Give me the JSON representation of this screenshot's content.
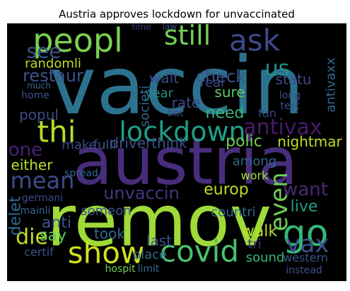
{
  "chart_data": {
    "type": "wordcloud",
    "title": "Austria approves lockdown for unvaccinated",
    "background": "#000000",
    "words": [
      {
        "text": "vaccin",
        "weight": 112,
        "color": "#2c728e"
      },
      {
        "text": "austria",
        "weight": 92,
        "color": "#472d7b"
      },
      {
        "text": "remov",
        "weight": 100,
        "color": "#a0da39"
      },
      {
        "text": "peopl",
        "weight": 46,
        "color": "#7ad151"
      },
      {
        "text": "still",
        "weight": 38,
        "color": "#73d056"
      },
      {
        "text": "ask",
        "weight": 42,
        "color": "#3e4989"
      },
      {
        "text": "see",
        "weight": 28,
        "color": "#3b528b"
      },
      {
        "text": "us",
        "weight": 30,
        "color": "#21918c"
      },
      {
        "text": "thi",
        "weight": 42,
        "color": "#b5de2b"
      },
      {
        "text": "lockdown",
        "weight": 38,
        "color": "#1f9e89"
      },
      {
        "text": "antivax",
        "weight": 30,
        "color": "#481a6c"
      },
      {
        "text": "go",
        "weight": 52,
        "color": "#35b779"
      },
      {
        "text": "show",
        "weight": 42,
        "color": "#d2e21b"
      },
      {
        "text": "covid",
        "weight": 42,
        "color": "#4ac16d"
      },
      {
        "text": "mean",
        "weight": 32,
        "color": "#3e4a89"
      },
      {
        "text": "even",
        "weight": 34,
        "color": "#6ece58"
      },
      {
        "text": "vax",
        "weight": 34,
        "color": "#3b528b"
      },
      {
        "text": "want",
        "weight": 26,
        "color": "#482878"
      },
      {
        "text": "die",
        "weight": 30,
        "color": "#c2df23"
      },
      {
        "text": "unvaccin",
        "weight": 24,
        "color": "#46337e"
      },
      {
        "text": "europ",
        "weight": 22,
        "color": "#b8de29"
      },
      {
        "text": "walk",
        "weight": 22,
        "color": "#b5de2b"
      },
      {
        "text": "one",
        "weight": 26,
        "color": "#482173"
      },
      {
        "text": "restaur",
        "weight": 24,
        "color": "#3b528b"
      },
      {
        "text": "randomli",
        "weight": 18,
        "color": "#b8de29"
      },
      {
        "text": "check",
        "weight": 24,
        "color": "#3b528b"
      },
      {
        "text": "wait",
        "weight": 20,
        "color": "#3e4a89"
      },
      {
        "text": "statu",
        "weight": 20,
        "color": "#3e4a89"
      },
      {
        "text": "sure",
        "weight": 20,
        "color": "#5ec962"
      },
      {
        "text": "antivaxx",
        "weight": 18,
        "color": "#31688e"
      },
      {
        "text": "year",
        "weight": 18,
        "color": "#21918c"
      },
      {
        "text": "rate",
        "weight": 20,
        "color": "#3e4a89"
      },
      {
        "text": "real",
        "weight": 18,
        "color": "#3e4a89"
      },
      {
        "text": "need",
        "weight": 22,
        "color": "#35b779"
      },
      {
        "text": "polic",
        "weight": 22,
        "color": "#6ece58"
      },
      {
        "text": "nightmar",
        "weight": 20,
        "color": "#c2df23"
      },
      {
        "text": "societi",
        "weight": 18,
        "color": "#31688e"
      },
      {
        "text": "fun",
        "weight": 16,
        "color": "#3e4a89"
      },
      {
        "text": "popul",
        "weight": 20,
        "color": "#3e4a89"
      },
      {
        "text": "fulli",
        "weight": 18,
        "color": "#3b528b"
      },
      {
        "text": "make",
        "weight": 18,
        "color": "#3e4a89"
      },
      {
        "text": "driverthink",
        "weight": 20,
        "color": "#3b528b"
      },
      {
        "text": "either",
        "weight": 20,
        "color": "#b8de29"
      },
      {
        "text": "among",
        "weight": 18,
        "color": "#31688e"
      },
      {
        "text": "work",
        "weight": 16,
        "color": "#a0da39"
      },
      {
        "text": "live",
        "weight": 22,
        "color": "#1f9e89"
      },
      {
        "text": "delet",
        "weight": 22,
        "color": "#31688e"
      },
      {
        "text": "anti",
        "weight": 22,
        "color": "#3b528b"
      },
      {
        "text": "say",
        "weight": 22,
        "color": "#5ec962"
      },
      {
        "text": "someon",
        "weight": 18,
        "color": "#3b528b"
      },
      {
        "text": "took",
        "weight": 20,
        "color": "#31688e"
      },
      {
        "text": "last",
        "weight": 20,
        "color": "#3b528b"
      },
      {
        "text": "countri",
        "weight": 18,
        "color": "#31688e"
      },
      {
        "text": "tri",
        "weight": 18,
        "color": "#46327e"
      },
      {
        "text": "sound",
        "weight": 18,
        "color": "#35b779"
      },
      {
        "text": "western",
        "weight": 16,
        "color": "#3b528b"
      },
      {
        "text": "certif",
        "weight": 16,
        "color": "#3b528b"
      },
      {
        "text": "place",
        "weight": 18,
        "color": "#31688e"
      },
      {
        "text": "germani",
        "weight": 14,
        "color": "#3e4a89"
      },
      {
        "text": "mainli",
        "weight": 14,
        "color": "#31688e"
      },
      {
        "text": "hospit",
        "weight": 14,
        "color": "#6ece58"
      },
      {
        "text": "limit",
        "weight": 14,
        "color": "#31688e"
      },
      {
        "text": "instead",
        "weight": 14,
        "color": "#3b528b"
      },
      {
        "text": "spread",
        "weight": 14,
        "color": "#31688e"
      },
      {
        "text": "bot",
        "weight": 14,
        "color": "#3e4a89"
      },
      {
        "text": "test",
        "weight": 14,
        "color": "#3b528b"
      },
      {
        "text": "long",
        "weight": 14,
        "color": "#3b528b"
      },
      {
        "text": "home",
        "weight": 14,
        "color": "#3b528b"
      },
      {
        "text": "much",
        "weight": 12,
        "color": "#31688e"
      },
      {
        "text": "time",
        "weight": 12,
        "color": "#46327e"
      },
      {
        "text": "law",
        "weight": 12,
        "color": "#3b528b"
      }
    ]
  }
}
